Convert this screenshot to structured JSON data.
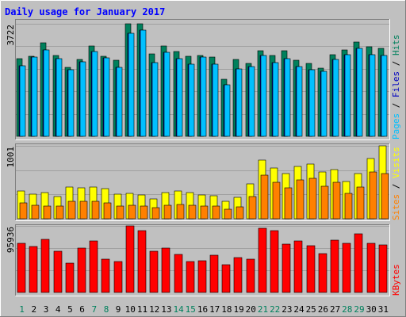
{
  "chart_data": {
    "type": "bar",
    "title": "Daily usage for January 2017",
    "categories": [
      "1",
      "2",
      "3",
      "4",
      "5",
      "6",
      "7",
      "8",
      "9",
      "10",
      "11",
      "12",
      "13",
      "14",
      "15",
      "16",
      "17",
      "18",
      "19",
      "20",
      "21",
      "22",
      "23",
      "24",
      "25",
      "26",
      "27",
      "28",
      "29",
      "30",
      "31"
    ],
    "weekend_days": [
      "1",
      "7",
      "8",
      "14",
      "15",
      "21",
      "22",
      "28",
      "29"
    ],
    "panels": [
      {
        "id": "hits",
        "max_label": "3722",
        "ylim": [
          0,
          3722
        ],
        "axis_labels": [
          "Pages",
          "Files",
          "Hits"
        ],
        "series": [
          {
            "name": "Hits",
            "color": "#00805c",
            "values": [
              2580,
              2660,
              3100,
              2680,
              2270,
              2550,
              3000,
              2640,
              2510,
              3722,
              3722,
              2730,
              3000,
              2800,
              2650,
              2680,
              2620,
              1900,
              2530,
              2400,
              2840,
              2670,
              2840,
              2520,
              2410,
              2250,
              2710,
              2870,
              3110,
              2950,
              2900
            ]
          },
          {
            "name": "Files",
            "color": "#0000c0",
            "values": [
              2330,
              2610,
              2860,
              2570,
              2190,
              2470,
              2800,
              2590,
              2290,
              3420,
              3510,
              2450,
              2780,
              2580,
              2380,
              2610,
              2390,
              1700,
              2230,
              2300,
              2670,
              2450,
              2570,
              2310,
              2190,
              2150,
              2530,
              2700,
              2900,
              2710,
              2680
            ]
          },
          {
            "name": "Pages",
            "color": "#00c0ff",
            "values": [
              2330,
              2610,
              2860,
              2570,
              2190,
              2470,
              2800,
              2590,
              2290,
              3420,
              3510,
              2450,
              2780,
              2580,
              2380,
              2610,
              2390,
              1700,
              2230,
              2300,
              2670,
              2450,
              2570,
              2310,
              2190,
              2150,
              2530,
              2700,
              2900,
              2710,
              2680
            ]
          }
        ]
      },
      {
        "id": "visits",
        "max_label": "1001",
        "ylim": [
          0,
          1001
        ],
        "axis_labels": [
          "Sites",
          "Visits"
        ],
        "series": [
          {
            "name": "Visits",
            "color": "#ffff00",
            "values": [
              380,
              340,
              360,
              300,
              430,
              420,
              430,
              410,
              340,
              350,
              330,
              270,
              360,
              380,
              360,
              330,
              320,
              240,
              290,
              480,
              800,
              700,
              620,
              720,
              750,
              640,
              680,
              510,
              620,
              830,
              1001
            ]
          },
          {
            "name": "Sites",
            "color": "#ff8000",
            "values": [
              220,
              190,
              170,
              170,
              240,
              240,
              240,
              220,
              170,
              180,
              170,
              150,
              190,
              200,
              190,
              170,
              170,
              130,
              160,
              300,
              600,
              500,
              420,
              530,
              560,
              450,
              500,
              350,
              440,
              640,
              620
            ]
          }
        ]
      },
      {
        "id": "kbytes",
        "max_label": "95936",
        "ylim": [
          0,
          95936
        ],
        "axis_labels": [
          "KBytes"
        ],
        "series": [
          {
            "name": "KBytes",
            "color": "#ff0000",
            "values": [
              71000,
              66000,
              77000,
              59000,
              42000,
              64000,
              74000,
              48000,
              44000,
              95936,
              89000,
              59000,
              64000,
              55000,
              44000,
              46000,
              54000,
              40000,
              50000,
              48000,
              92000,
              89000,
              70000,
              74000,
              67000,
              56000,
              75000,
              71000,
              85000,
              71000,
              68000
            ]
          }
        ]
      }
    ]
  }
}
